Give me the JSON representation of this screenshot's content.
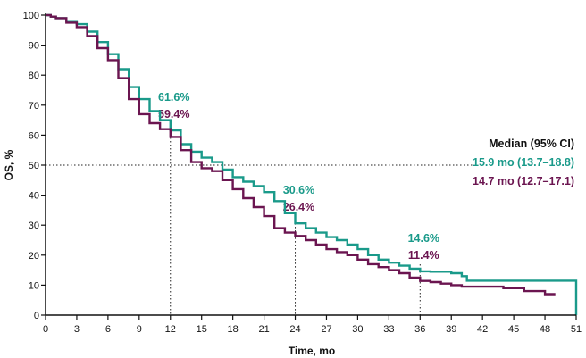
{
  "chart_data": {
    "type": "line",
    "title": "",
    "xlabel": "Time, mo",
    "ylabel": "OS, %",
    "xlim": [
      0,
      51
    ],
    "ylim": [
      0,
      100
    ],
    "xticks": [
      0,
      3,
      6,
      9,
      12,
      15,
      18,
      21,
      24,
      27,
      30,
      33,
      36,
      39,
      42,
      45,
      48,
      51
    ],
    "yticks": [
      0,
      10,
      20,
      30,
      40,
      50,
      60,
      70,
      80,
      90,
      100
    ],
    "grid": false,
    "median_line": {
      "y": 50
    },
    "legend": {
      "title": "Median (95% CI)",
      "entries": [
        {
          "text": "15.9 mo (13.7–18.8)",
          "color": "#1a9a8a"
        },
        {
          "text": "14.7 mo (12.7–17.1)",
          "color": "#6b1550"
        }
      ],
      "position": "right"
    },
    "series": [
      {
        "color": "#1a9a8a",
        "points": [
          [
            0,
            100
          ],
          [
            0.5,
            99.5
          ],
          [
            1,
            99
          ],
          [
            2,
            98
          ],
          [
            3,
            97
          ],
          [
            4,
            94.5
          ],
          [
            5,
            91
          ],
          [
            6,
            87
          ],
          [
            7,
            82
          ],
          [
            8,
            76
          ],
          [
            9,
            72
          ],
          [
            10,
            68
          ],
          [
            11,
            65
          ],
          [
            12,
            61.6
          ],
          [
            13,
            57
          ],
          [
            14,
            54.5
          ],
          [
            15,
            52.5
          ],
          [
            16,
            51
          ],
          [
            17,
            48.5
          ],
          [
            18,
            46
          ],
          [
            19,
            44.5
          ],
          [
            20,
            43
          ],
          [
            21,
            41
          ],
          [
            22,
            38
          ],
          [
            23,
            34
          ],
          [
            24,
            30.6
          ],
          [
            25,
            29
          ],
          [
            26,
            27.5
          ],
          [
            27,
            26
          ],
          [
            28,
            25
          ],
          [
            29,
            23.5
          ],
          [
            30,
            22
          ],
          [
            31,
            20
          ],
          [
            32,
            18.5
          ],
          [
            33,
            17.5
          ],
          [
            34,
            16.5
          ],
          [
            35,
            15.5
          ],
          [
            36,
            14.6
          ],
          [
            37,
            14.5
          ],
          [
            38,
            14.5
          ],
          [
            39,
            14
          ],
          [
            40,
            13
          ],
          [
            40.5,
            11.5
          ],
          [
            45,
            11.5
          ],
          [
            50,
            11.5
          ],
          [
            51,
            11.5
          ],
          [
            51,
            0
          ]
        ]
      },
      {
        "color": "#6b1550",
        "points": [
          [
            0,
            100
          ],
          [
            0.5,
            99.5
          ],
          [
            1,
            99
          ],
          [
            2,
            97.5
          ],
          [
            3,
            96
          ],
          [
            4,
            93
          ],
          [
            5,
            89
          ],
          [
            6,
            85
          ],
          [
            7,
            79
          ],
          [
            8,
            72
          ],
          [
            9,
            67
          ],
          [
            10,
            64
          ],
          [
            11,
            62
          ],
          [
            12,
            59.4
          ],
          [
            13,
            55
          ],
          [
            14,
            51
          ],
          [
            15,
            49
          ],
          [
            16,
            48
          ],
          [
            17,
            45
          ],
          [
            18,
            42
          ],
          [
            19,
            39
          ],
          [
            20,
            36
          ],
          [
            21,
            33
          ],
          [
            22,
            29
          ],
          [
            23,
            27.5
          ],
          [
            24,
            26.4
          ],
          [
            25,
            25
          ],
          [
            26,
            23.5
          ],
          [
            27,
            22
          ],
          [
            28,
            21
          ],
          [
            29,
            20
          ],
          [
            30,
            18.5
          ],
          [
            31,
            17
          ],
          [
            32,
            16
          ],
          [
            33,
            15
          ],
          [
            34,
            14
          ],
          [
            35,
            12.5
          ],
          [
            36,
            11.4
          ],
          [
            37,
            11
          ],
          [
            38,
            10.5
          ],
          [
            39,
            10
          ],
          [
            40,
            9.5
          ],
          [
            41,
            9.5
          ],
          [
            42,
            9.5
          ],
          [
            44,
            9
          ],
          [
            46,
            8
          ],
          [
            48,
            7
          ],
          [
            49,
            7
          ]
        ]
      }
    ],
    "annotations": [
      {
        "x": 12,
        "labels": [
          {
            "text": "61.6%",
            "color": "#1a9a8a"
          },
          {
            "text": "59.4%",
            "color": "#6b1550"
          }
        ]
      },
      {
        "x": 24,
        "labels": [
          {
            "text": "30.6%",
            "color": "#1a9a8a"
          },
          {
            "text": "26.4%",
            "color": "#6b1550"
          }
        ]
      },
      {
        "x": 36,
        "labels": [
          {
            "text": "14.6%",
            "color": "#1a9a8a"
          },
          {
            "text": "11.4%",
            "color": "#6b1550"
          }
        ]
      }
    ]
  }
}
